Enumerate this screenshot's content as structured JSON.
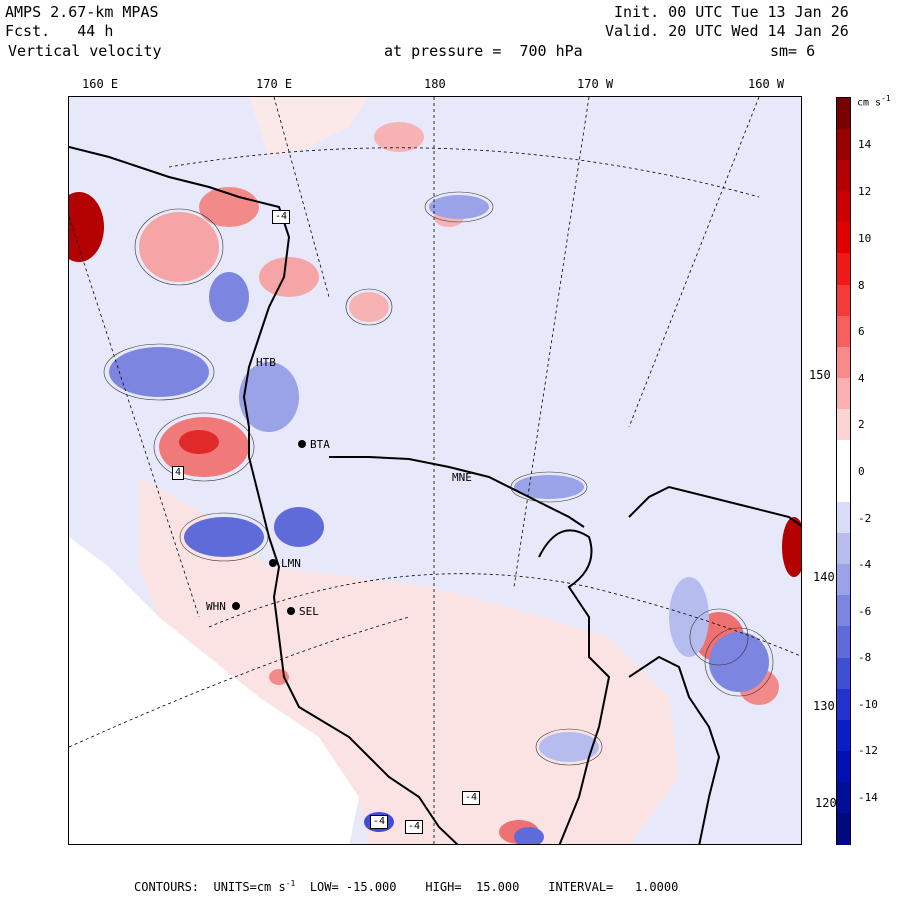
{
  "header": {
    "model": "AMPS 2.67-km MPAS",
    "forecast": "Fcst.   44 h",
    "field": "Vertical velocity",
    "init": "Init. 00 UTC Tue 13 Jan 26",
    "valid": "Valid. 20 UTC Wed 14 Jan 26",
    "level": "at pressure =  700 hPa",
    "smoothing": "sm= 6"
  },
  "longitude_labels": [
    "160 E",
    "170 E",
    "180",
    "170 W",
    "160 W"
  ],
  "latitude_labels": [
    "150 W",
    "140 W",
    "130 W",
    "120 W"
  ],
  "stations": [
    "WHN",
    "SEL",
    "LMN",
    "BTA",
    "HTB",
    "MNE"
  ],
  "box_labels": [
    "-4",
    "4",
    "-4",
    "-4",
    "-4"
  ],
  "colorbar": {
    "units": "cm s",
    "units_exp": "-1",
    "ticks": [
      "14",
      "12",
      "10",
      "8",
      "6",
      "4",
      "2",
      "0",
      "-2",
      "-4",
      "-6",
      "-8",
      "-10",
      "-12",
      "-14"
    ],
    "colors": [
      "#7a0000",
      "#9a0000",
      "#b40000",
      "#cc0000",
      "#e00000",
      "#f01818",
      "#f53a3a",
      "#f86060",
      "#f98a8a",
      "#fbb0b0",
      "#fdd4d4",
      "#ffffff",
      "#ffffff",
      "#d8dcf6",
      "#b6bdee",
      "#9aa2e8",
      "#7c86e0",
      "#5e6bd8",
      "#3f4fd4",
      "#2234d0",
      "#0a1ec8",
      "#0010b4",
      "#000e98",
      "#000a80"
    ]
  },
  "footer": {
    "contours": "CONTOURS:  UNITS=cm s",
    "units_exp": "-1",
    "low": "LOW= -15.000",
    "high": "HIGH=  15.000",
    "interval": "INTERVAL=   1.0000"
  },
  "chart_data": {
    "type": "contour-map",
    "title": "Vertical velocity at pressure = 700 hPa",
    "units": "cm s-1",
    "contour_low": -15.0,
    "contour_high": 15.0,
    "contour_interval": 1.0,
    "colorbar_range": [
      -15,
      15
    ]
  }
}
